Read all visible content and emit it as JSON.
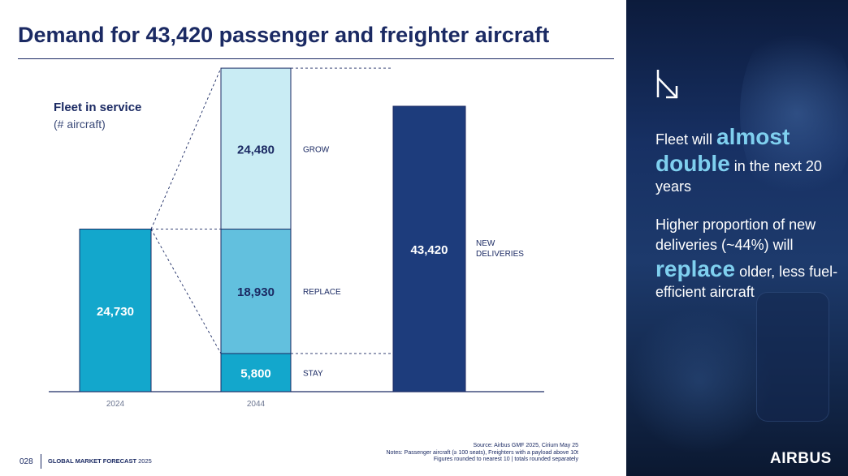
{
  "title": "Demand for 43,420 passenger and freighter aircraft",
  "chart_data": {
    "type": "bar",
    "subtype": "stacked-waterfall",
    "y_label": "Fleet in service",
    "y_unit": "(# aircraft)",
    "ylim": [
      0,
      43420
    ],
    "categories": [
      "2024",
      "2044",
      ""
    ],
    "bars": [
      {
        "category": "2024",
        "segments": [
          {
            "label": "",
            "value": 24730,
            "value_label": "24,730",
            "color": "#13a7cc"
          }
        ]
      },
      {
        "category": "2044",
        "segments": [
          {
            "label": "STAY",
            "value": 5800,
            "value_label": "5,800",
            "color": "#13a7cc"
          },
          {
            "label": "REPLACE",
            "value": 18930,
            "value_label": "18,930",
            "color": "#62c0de"
          },
          {
            "label": "GROW",
            "value": 24480,
            "value_label": "24,480",
            "color": "#c9ecf4"
          }
        ]
      },
      {
        "category": "",
        "segments": [
          {
            "label": "NEW DELIVERIES",
            "value": 43420,
            "value_label": "43,420",
            "color": "#1d3c7c"
          }
        ]
      }
    ]
  },
  "source": {
    "line1": "Source: Airbus GMF 2025, Cirium May 25",
    "line2": "Notes: Passenger aircraft (≥ 100 seats), Freighters with a payload above 10t",
    "line3": "Figures rounded to nearest 10 | totals rounded separately"
  },
  "footer": {
    "page": "028",
    "label": "GLOBAL MARKET FORECAST",
    "year": "2025"
  },
  "panel": {
    "arrow_icon": "arrow-down-right-icon",
    "p1_pre": "Fleet will ",
    "p1_hl1": "almost",
    "p1_hl2": "double",
    "p1_post": " in the next 20 years",
    "p2_pre": "Higher proportion of new deliveries (~44%) will",
    "p2_hl": "replace",
    "p2_post": " older, less fuel-efficient aircraft",
    "logo": "AIRBUS"
  }
}
